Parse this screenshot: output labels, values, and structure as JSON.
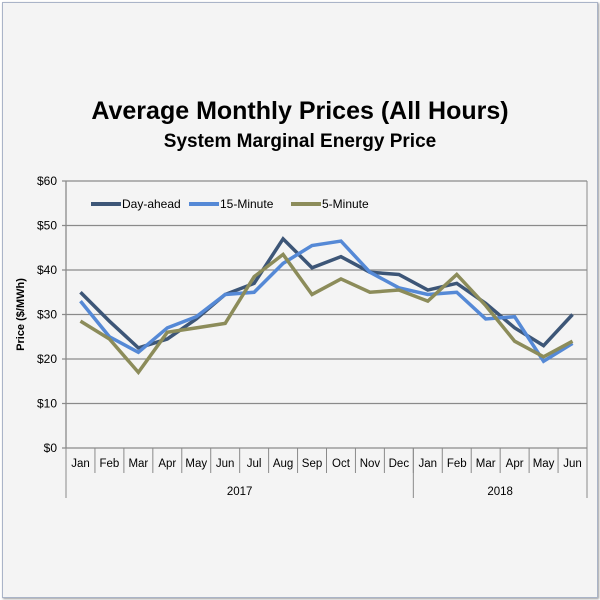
{
  "chart_data": {
    "type": "line",
    "title": "Average Monthly Prices (All Hours)",
    "subtitle": "System Marginal Energy Price",
    "ylabel": "Price ($/MWh)",
    "xlabel": "",
    "ylim": [
      0,
      60
    ],
    "yticks": [
      "$0",
      "$10",
      "$20",
      "$30",
      "$40",
      "$50",
      "$60"
    ],
    "categories": [
      "Jan",
      "Feb",
      "Mar",
      "Apr",
      "May",
      "Jun",
      "Jul",
      "Aug",
      "Sep",
      "Oct",
      "Nov",
      "Dec",
      "Jan",
      "Feb",
      "Mar",
      "Apr",
      "May",
      "Jun"
    ],
    "year_groups": [
      {
        "label": "2017",
        "count": 12
      },
      {
        "label": "2018",
        "count": 6
      }
    ],
    "grid": true,
    "legend_position": "top-left",
    "series": [
      {
        "name": "Day-ahead",
        "color": "#3d5677",
        "values": [
          35,
          28.5,
          22.5,
          24.5,
          29,
          34.5,
          37,
          47,
          40.5,
          43,
          39.5,
          39,
          35.5,
          37,
          32.5,
          27,
          23,
          30
        ]
      },
      {
        "name": "15-Minute",
        "color": "#5589d6",
        "values": [
          33,
          25,
          21.5,
          27,
          29.5,
          34.5,
          35,
          41.5,
          45.5,
          46.5,
          39.5,
          36,
          34.5,
          35,
          29,
          29.5,
          19.5,
          23.5
        ]
      },
      {
        "name": "5-Minute",
        "color": "#8c8c5a",
        "values": [
          28.5,
          24.5,
          17,
          26,
          27,
          28,
          38.5,
          43.5,
          34.5,
          38,
          35,
          35.5,
          33,
          39,
          32,
          24,
          20.5,
          24
        ]
      }
    ]
  }
}
